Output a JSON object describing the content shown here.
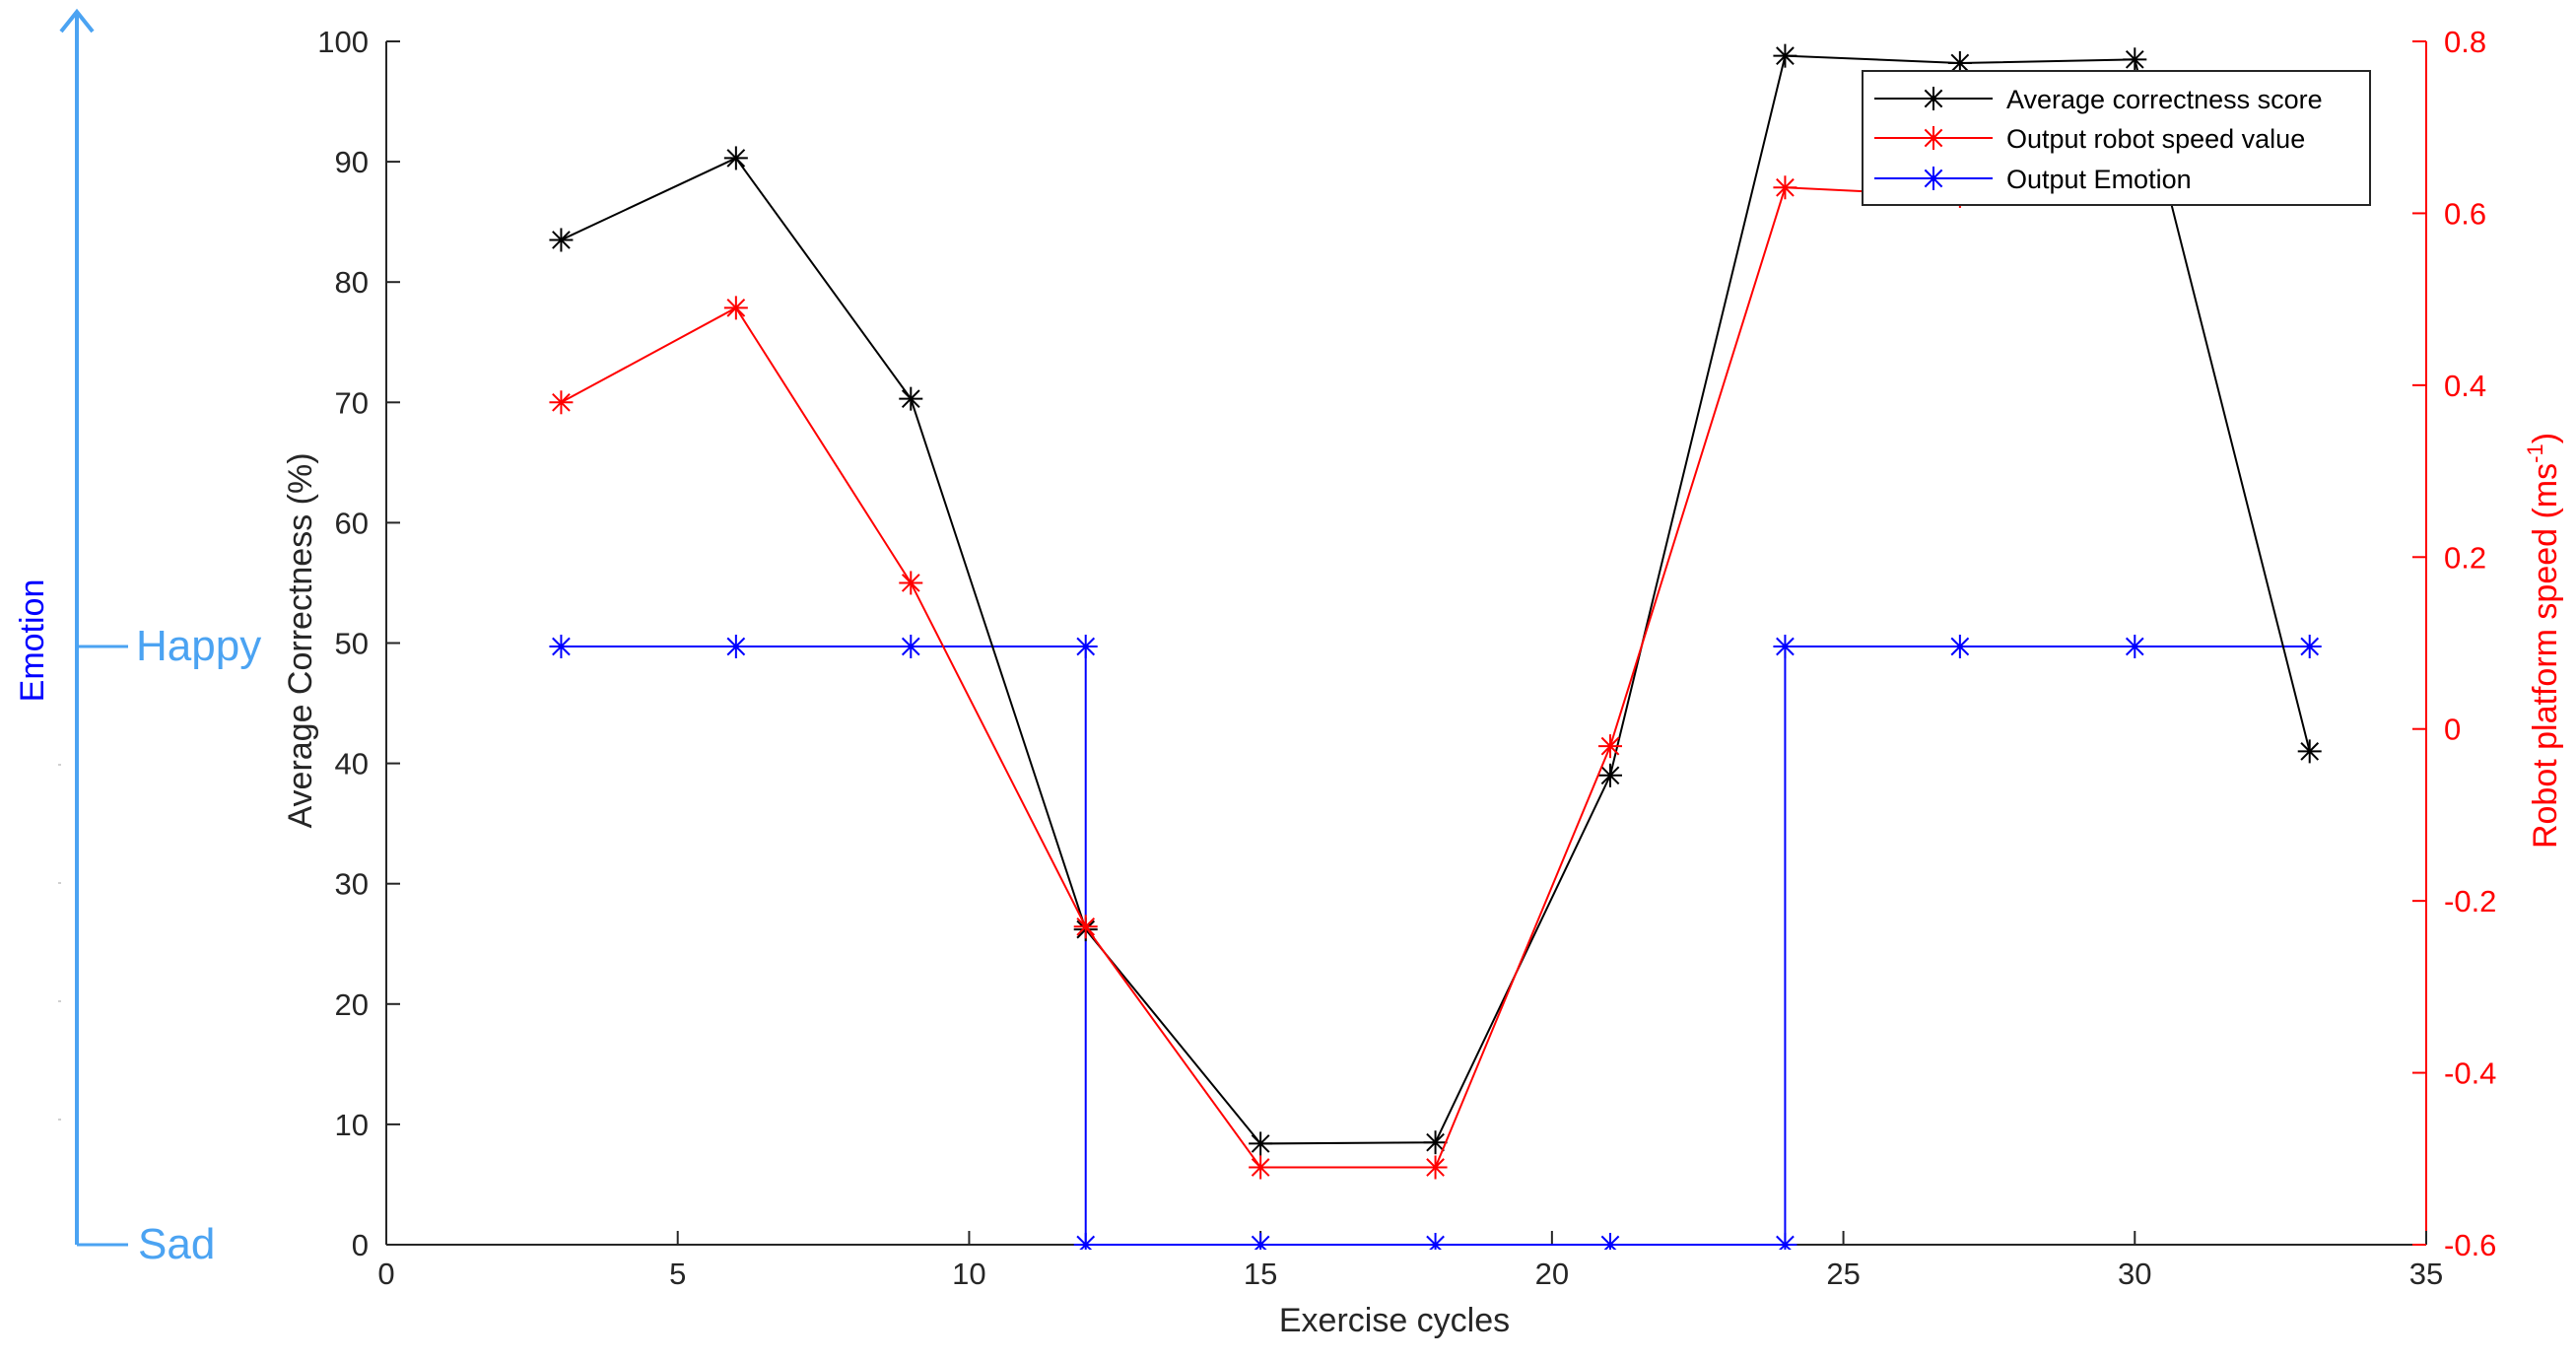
{
  "chart_data": {
    "type": "line",
    "xlabel": "Exercise cycles",
    "ylabel": "Average Correctness (%)",
    "y2label": "Robot platform speed (ms",
    "y2label_sup": "-1",
    "y2label_close": ")",
    "emotion_axis_label": "Emotion",
    "emotion_levels": {
      "high": "Happy",
      "low": "Sad"
    },
    "xlim": [
      0,
      35
    ],
    "ylim": [
      0,
      100
    ],
    "y2lim": [
      -0.6,
      0.8
    ],
    "xticks": [
      "0",
      "5",
      "10",
      "15",
      "20",
      "25",
      "30",
      "35"
    ],
    "yticks": [
      "0",
      "10",
      "20",
      "30",
      "40",
      "50",
      "60",
      "70",
      "80",
      "90",
      "100"
    ],
    "y2ticks": [
      "-0.6",
      "-0.4",
      "-0.2",
      "0",
      "0.2",
      "0.4",
      "0.6",
      "0.8"
    ],
    "legend_position": "top-right",
    "grid": false,
    "series": [
      {
        "name": "Average correctness score",
        "color": "#000000",
        "axis": "left",
        "step": false,
        "x": [
          3,
          6,
          9,
          12,
          15,
          18,
          21,
          24,
          27,
          30,
          33
        ],
        "values": [
          83.5,
          90.3,
          70.3,
          26.2,
          8.4,
          8.5,
          39.0,
          98.8,
          98.2,
          98.5,
          41.0
        ]
      },
      {
        "name": "Output robot speed value",
        "color": "#ff0000",
        "axis": "right",
        "step": false,
        "x": [
          3,
          6,
          9,
          12,
          15,
          18,
          21,
          24,
          27
        ],
        "values": [
          0.38,
          0.49,
          0.17,
          -0.23,
          -0.51,
          -0.51,
          -0.02,
          0.63,
          0.62
        ]
      },
      {
        "name": "Output Emotion",
        "color": "#0000ff",
        "axis": "emotion",
        "step": true,
        "x": [
          3,
          6,
          9,
          12,
          12,
          15,
          18,
          21,
          24,
          24,
          27,
          30,
          33
        ],
        "values": [
          "Happy",
          "Happy",
          "Happy",
          "Happy",
          "Sad",
          "Sad",
          "Sad",
          "Sad",
          "Sad",
          "Happy",
          "Happy",
          "Happy",
          "Happy"
        ]
      }
    ],
    "colors": {
      "emotion_axis": "#4ba3f2",
      "emotion_label": "#0000ff",
      "left_axis": "#262626",
      "right_axis": "#ff0000"
    }
  }
}
